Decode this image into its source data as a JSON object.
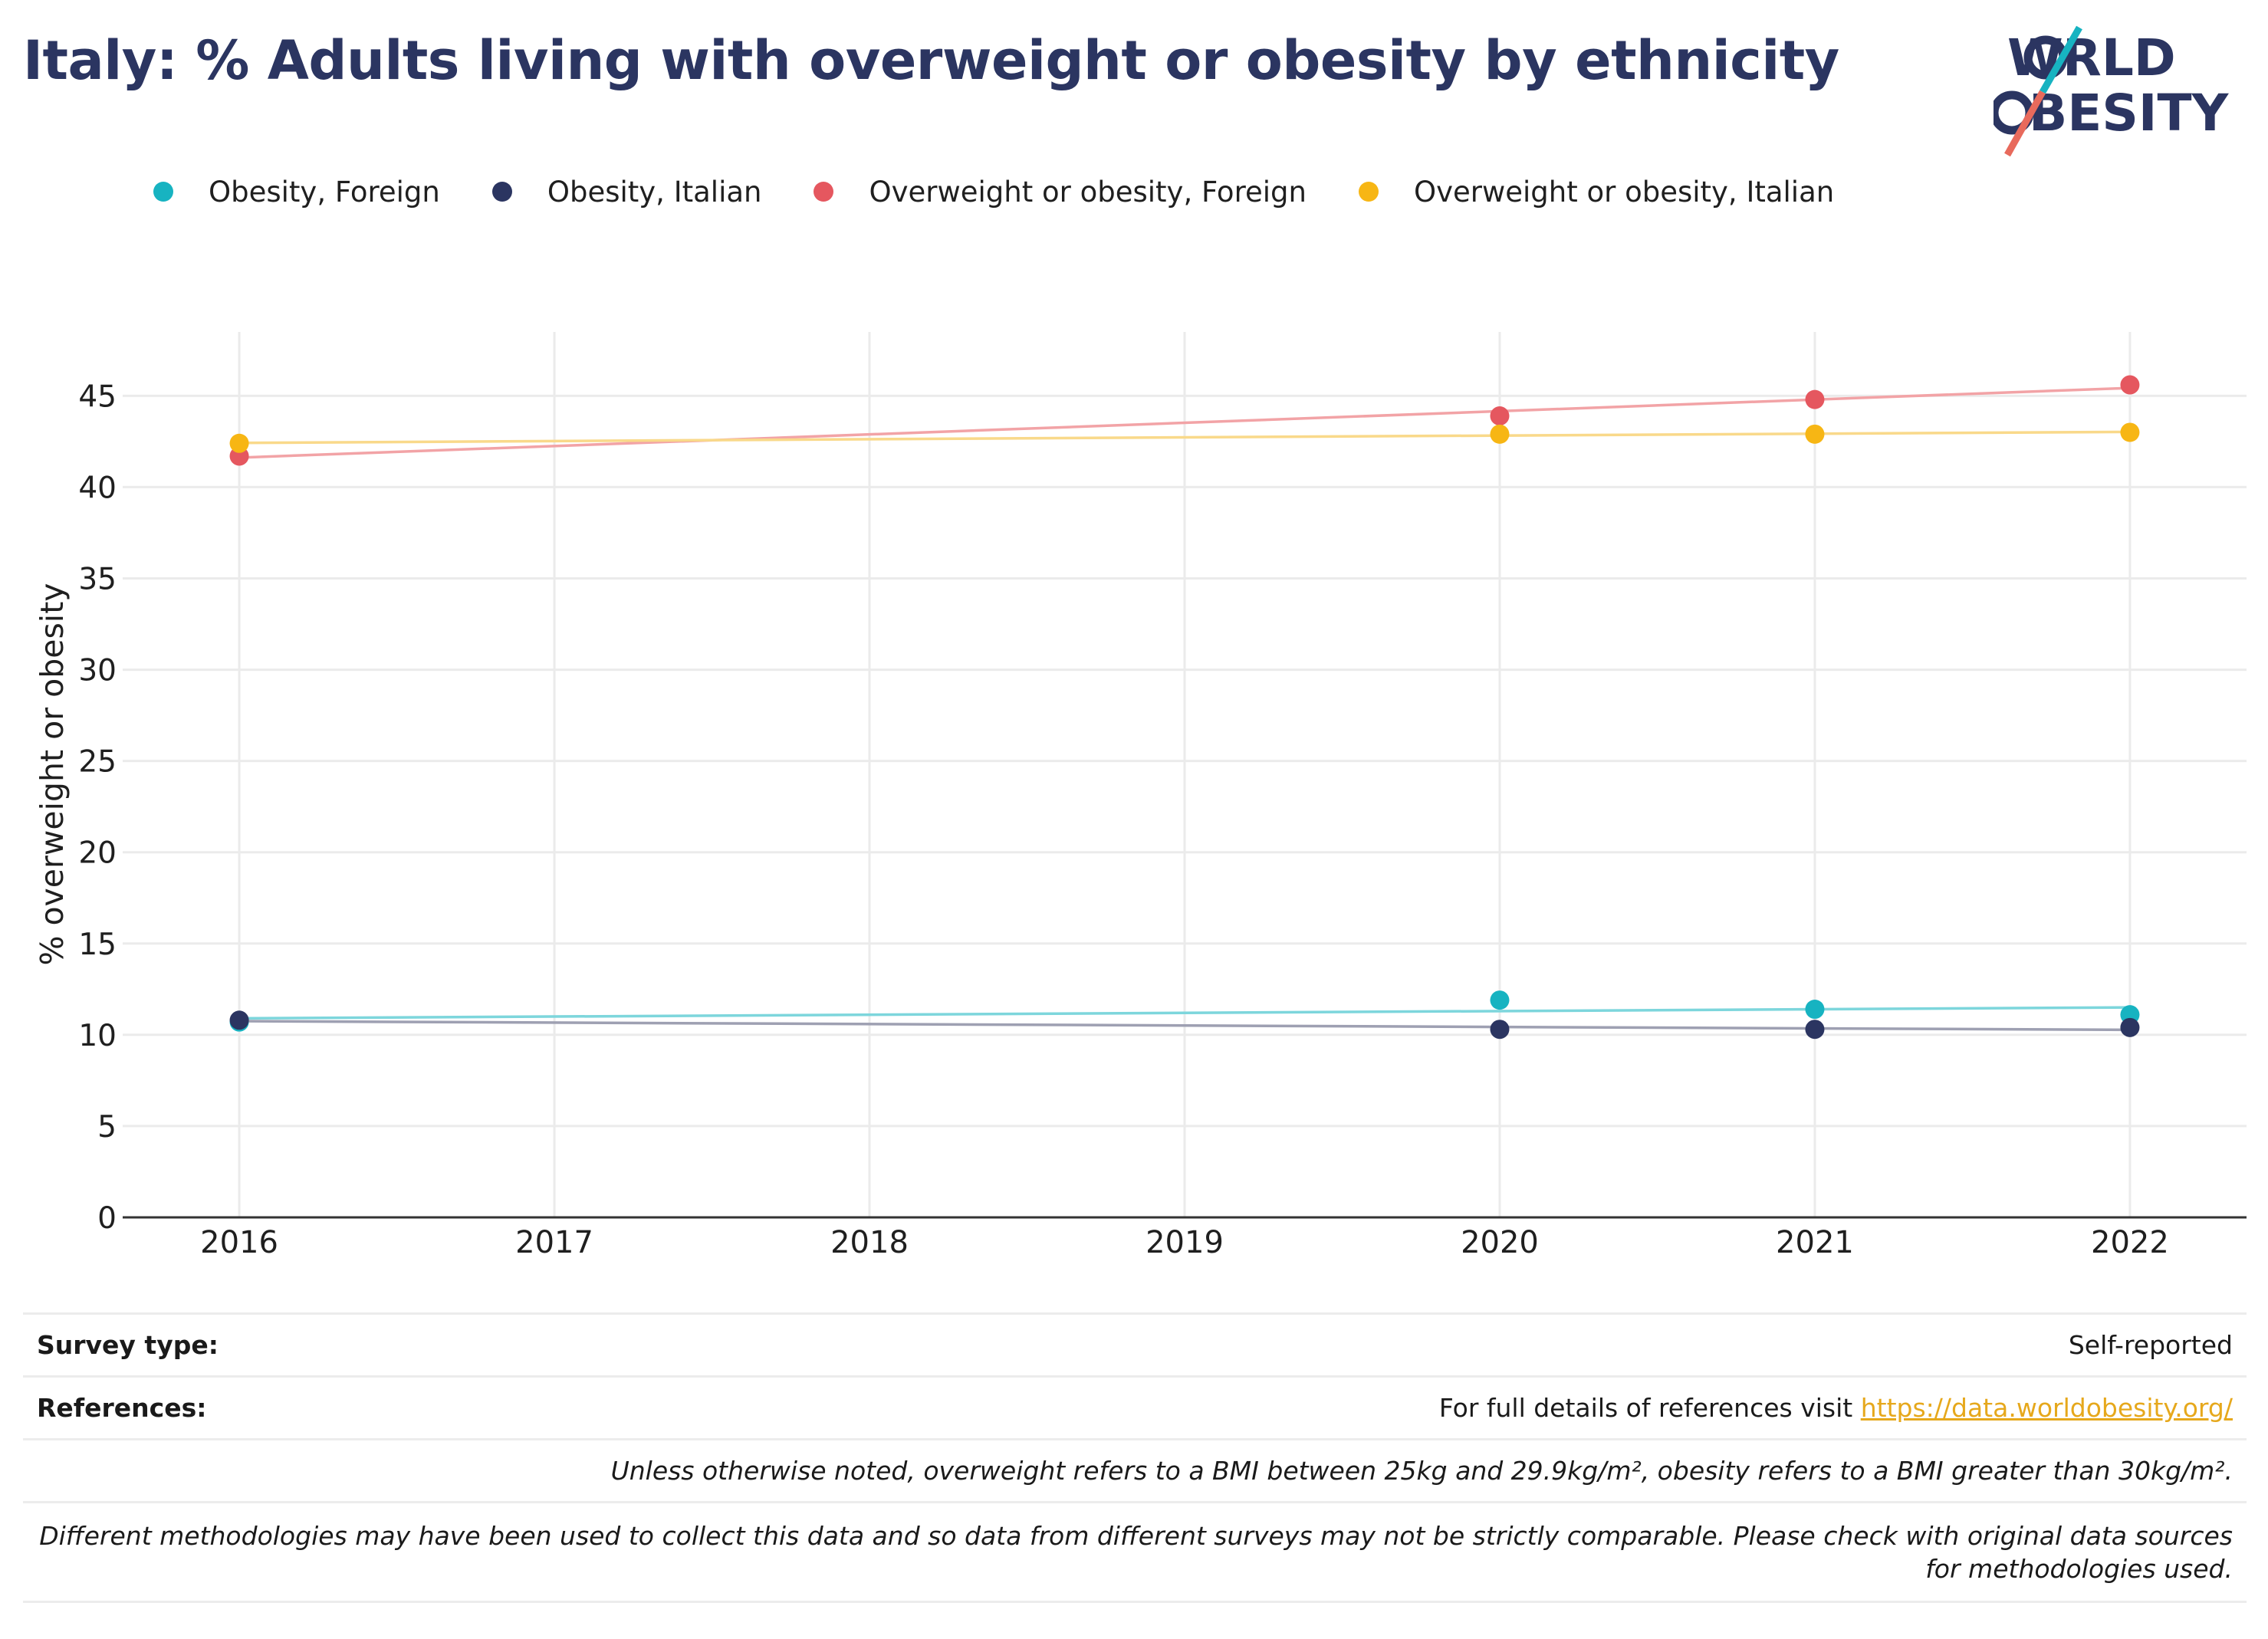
{
  "title": "Italy: % Adults living with overweight or obesity by ethnicity",
  "logo": {
    "line1": "WORLD",
    "line2": "OBESITY",
    "navy": "#2b3561",
    "teal": "#17b3c1",
    "coral": "#e86a5c"
  },
  "colors": {
    "obesity_foreign": "#17b3c1",
    "obesity_italian": "#2b3561",
    "overweight_foreign": "#e5575f",
    "overweight_italian": "#f7b614"
  },
  "chart_data": {
    "type": "scatter",
    "title": "Italy: % Adults living with overweight or obesity by ethnicity",
    "xlabel": "",
    "ylabel": "% overweight or obesity",
    "xlim": [
      2015.63,
      2022.37
    ],
    "ylim": [
      0,
      48.5
    ],
    "xticks": [
      2016,
      2017,
      2018,
      2019,
      2020,
      2021,
      2022
    ],
    "yticks": [
      0,
      5,
      10,
      15,
      20,
      25,
      30,
      35,
      40,
      45
    ],
    "grid": true,
    "legend_position": "top",
    "trendlines": true,
    "series": [
      {
        "name": "Obesity, Foreign",
        "color": "#17b3c1",
        "trend_color": "#7dd6dc",
        "x": [
          2016,
          2020,
          2021,
          2022
        ],
        "y": [
          10.7,
          11.9,
          11.4,
          11.1
        ]
      },
      {
        "name": "Obesity, Italian",
        "color": "#2b3561",
        "trend_color": "#9ea0b2",
        "x": [
          2016,
          2020,
          2021,
          2022
        ],
        "y": [
          10.8,
          10.3,
          10.3,
          10.4
        ]
      },
      {
        "name": "Overweight or obesity, Foreign",
        "color": "#e5575f",
        "trend_color": "#f2a3a6",
        "x": [
          2016,
          2020,
          2021,
          2022
        ],
        "y": [
          41.7,
          43.9,
          44.8,
          45.6
        ]
      },
      {
        "name": "Overweight or obesity, Italian",
        "color": "#f7b614",
        "trend_color": "#f9d98a",
        "x": [
          2016,
          2020,
          2021,
          2022
        ],
        "y": [
          42.4,
          42.9,
          42.9,
          43.0
        ]
      }
    ]
  },
  "footer": {
    "survey_type_label": "Survey type:",
    "survey_type_value": "Self-reported",
    "references_label": "References:",
    "references_text": "For full details of references visit ",
    "references_link": "https://data.worldobesity.org/",
    "note_bmi": "Unless otherwise noted, overweight refers to a BMI between 25kg and 29.9kg/m², obesity refers to a BMI greater than 30kg/m².",
    "note_methods": "Different methodologies may have been used to collect this data and so data from different surveys may not be strictly comparable. Please check with original data sources for methodologies used."
  }
}
